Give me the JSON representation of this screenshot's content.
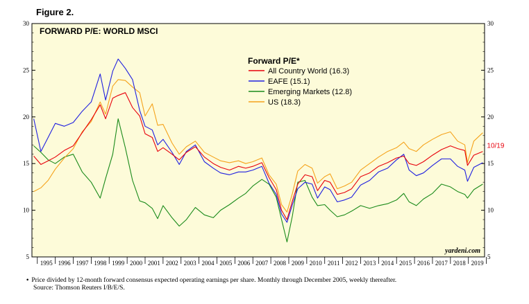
{
  "figure_label": "Figure 2.",
  "footnote": "Price divided by 12-month forward consensus expected operating earnings per share. Monthly through December 2005, weekly thereafter.",
  "source": "Source: Thomson Reuters I/B/E/S.",
  "chart_data": {
    "type": "line",
    "title": "FORWARD P/E: WORLD MSCI",
    "legend_title": "Forward P/E*",
    "legend_position": "top-center",
    "watermark": "yardeni.com",
    "end_label": "10/19",
    "ylim": [
      5,
      30
    ],
    "yticks": [
      5,
      10,
      15,
      20,
      25,
      30
    ],
    "xlim": [
      1994.7,
      2019.9
    ],
    "xtick_labels": [
      "1995",
      "1996",
      "1997",
      "1998",
      "1999",
      "2000",
      "2001",
      "2002",
      "2003",
      "2004",
      "2005",
      "2006",
      "2007",
      "2008",
      "2009",
      "2010",
      "2011",
      "2012",
      "2013",
      "2014",
      "2015",
      "2016",
      "2017",
      "2018",
      "2019"
    ],
    "background": "#fdfbd9",
    "series": [
      {
        "name": "All Country World (16.3)",
        "color": "#e8000b",
        "x": [
          1994.8,
          1995.2,
          1995.6,
          1996.0,
          1996.5,
          1997.0,
          1997.5,
          1998.0,
          1998.5,
          1998.8,
          1999.2,
          1999.5,
          1999.9,
          2000.3,
          2000.7,
          2001.0,
          2001.4,
          2001.7,
          2002.0,
          2002.5,
          2002.9,
          2003.3,
          2003.8,
          2004.3,
          2004.8,
          2005.2,
          2005.7,
          2006.2,
          2006.6,
          2007.0,
          2007.5,
          2007.9,
          2008.3,
          2008.6,
          2008.9,
          2009.2,
          2009.5,
          2009.9,
          2010.3,
          2010.6,
          2011.0,
          2011.3,
          2011.7,
          2012.1,
          2012.5,
          2013.0,
          2013.5,
          2014.0,
          2014.5,
          2015.0,
          2015.4,
          2015.7,
          2016.1,
          2016.5,
          2017.0,
          2017.5,
          2018.0,
          2018.4,
          2018.8,
          2018.95,
          2019.3,
          2019.8
        ],
        "y": [
          15.8,
          14.9,
          15.3,
          15.7,
          16.4,
          16.9,
          18.3,
          19.7,
          21.3,
          19.8,
          22.0,
          22.3,
          22.6,
          21.0,
          20.1,
          18.2,
          17.8,
          16.3,
          16.7,
          16.0,
          15.4,
          16.2,
          16.8,
          15.7,
          15.0,
          14.6,
          14.3,
          14.7,
          14.5,
          14.7,
          15.1,
          13.5,
          12.2,
          10.0,
          9.0,
          11.0,
          12.8,
          13.8,
          13.6,
          12.1,
          13.2,
          13.0,
          11.7,
          11.9,
          12.3,
          13.6,
          14.0,
          14.7,
          15.1,
          15.6,
          15.8,
          15.0,
          14.8,
          15.2,
          15.9,
          16.5,
          16.9,
          16.6,
          16.4,
          14.8,
          15.9,
          16.3
        ]
      },
      {
        "name": "EAFE (15.1)",
        "color": "#1f1fe0",
        "x": [
          1994.8,
          1995.2,
          1995.6,
          1996.0,
          1996.5,
          1997.0,
          1997.5,
          1998.0,
          1998.5,
          1998.8,
          1999.2,
          1999.5,
          1999.9,
          2000.3,
          2000.7,
          2001.0,
          2001.4,
          2001.7,
          2002.0,
          2002.5,
          2002.9,
          2003.3,
          2003.8,
          2004.3,
          2004.8,
          2005.2,
          2005.7,
          2006.2,
          2006.6,
          2007.0,
          2007.5,
          2007.9,
          2008.3,
          2008.6,
          2008.9,
          2009.2,
          2009.5,
          2009.9,
          2010.3,
          2010.6,
          2011.0,
          2011.3,
          2011.7,
          2012.1,
          2012.5,
          2013.0,
          2013.5,
          2014.0,
          2014.5,
          2015.0,
          2015.4,
          2015.7,
          2016.1,
          2016.5,
          2017.0,
          2017.5,
          2018.0,
          2018.4,
          2018.8,
          2018.95,
          2019.3,
          2019.8
        ],
        "y": [
          19.8,
          16.3,
          17.8,
          19.3,
          19.0,
          19.4,
          20.6,
          21.6,
          24.6,
          21.8,
          24.9,
          26.2,
          25.2,
          24.0,
          20.7,
          19.0,
          18.6,
          17.0,
          17.6,
          16.2,
          14.9,
          16.3,
          17.0,
          15.2,
          14.5,
          14.0,
          13.8,
          14.1,
          14.1,
          14.3,
          14.7,
          12.9,
          11.7,
          9.6,
          8.7,
          10.6,
          12.3,
          13.0,
          12.8,
          11.3,
          12.5,
          12.2,
          10.9,
          11.1,
          11.4,
          12.7,
          13.2,
          14.1,
          14.5,
          15.4,
          16.0,
          14.3,
          13.7,
          14.0,
          14.8,
          15.5,
          15.5,
          14.7,
          14.3,
          13.1,
          14.6,
          15.1
        ]
      },
      {
        "name": "Emerging Markets (12.8)",
        "color": "#1a8a1a",
        "x": [
          1994.8,
          1995.2,
          1995.6,
          1996.0,
          1996.5,
          1997.0,
          1997.5,
          1998.0,
          1998.5,
          1998.8,
          1999.2,
          1999.5,
          1999.9,
          2000.3,
          2000.7,
          2001.0,
          2001.4,
          2001.7,
          2002.0,
          2002.5,
          2002.9,
          2003.3,
          2003.8,
          2004.3,
          2004.8,
          2005.2,
          2005.7,
          2006.2,
          2006.6,
          2007.0,
          2007.5,
          2007.9,
          2008.3,
          2008.6,
          2008.9,
          2009.2,
          2009.5,
          2009.9,
          2010.3,
          2010.6,
          2011.0,
          2011.3,
          2011.7,
          2012.1,
          2012.5,
          2013.0,
          2013.5,
          2014.0,
          2014.5,
          2015.0,
          2015.4,
          2015.7,
          2016.1,
          2016.5,
          2017.0,
          2017.5,
          2018.0,
          2018.4,
          2018.8,
          2018.95,
          2019.3,
          2019.8
        ],
        "y": [
          16.9,
          16.2,
          15.4,
          15.0,
          15.7,
          16.0,
          14.1,
          13.0,
          11.3,
          13.4,
          16.0,
          19.8,
          16.7,
          13.2,
          11.0,
          10.8,
          10.2,
          9.1,
          10.5,
          9.2,
          8.3,
          9.0,
          10.3,
          9.5,
          9.2,
          10.0,
          10.6,
          11.3,
          11.8,
          12.6,
          13.3,
          12.8,
          11.4,
          9.0,
          6.6,
          9.4,
          13.0,
          13.2,
          11.4,
          10.5,
          10.6,
          10.0,
          9.3,
          9.5,
          9.9,
          10.5,
          10.2,
          10.5,
          10.7,
          11.1,
          11.8,
          10.9,
          10.5,
          11.2,
          11.8,
          12.8,
          12.5,
          12.0,
          11.7,
          11.3,
          12.2,
          12.8
        ]
      },
      {
        "name": "US (18.3)",
        "color": "#f5a21a",
        "x": [
          1994.8,
          1995.2,
          1995.6,
          1996.0,
          1996.5,
          1997.0,
          1997.5,
          1998.0,
          1998.5,
          1998.8,
          1999.2,
          1999.5,
          1999.9,
          2000.3,
          2000.7,
          2001.0,
          2001.4,
          2001.7,
          2002.0,
          2002.5,
          2002.9,
          2003.3,
          2003.8,
          2004.3,
          2004.8,
          2005.2,
          2005.7,
          2006.2,
          2006.6,
          2007.0,
          2007.5,
          2007.9,
          2008.3,
          2008.6,
          2008.9,
          2009.2,
          2009.5,
          2009.9,
          2010.3,
          2010.6,
          2011.0,
          2011.3,
          2011.7,
          2012.1,
          2012.5,
          2013.0,
          2013.5,
          2014.0,
          2014.5,
          2015.0,
          2015.4,
          2015.7,
          2016.1,
          2016.5,
          2017.0,
          2017.5,
          2018.0,
          2018.4,
          2018.8,
          2018.95,
          2019.3,
          2019.8
        ],
        "y": [
          12.0,
          12.4,
          13.2,
          14.4,
          15.6,
          16.6,
          18.4,
          19.5,
          21.6,
          20.3,
          23.3,
          24.0,
          23.9,
          23.2,
          22.6,
          20.1,
          21.4,
          19.1,
          19.2,
          17.2,
          16.0,
          16.8,
          17.4,
          16.2,
          15.7,
          15.3,
          15.1,
          15.3,
          15.0,
          15.2,
          15.6,
          13.8,
          12.8,
          10.6,
          9.8,
          11.8,
          14.2,
          14.9,
          14.5,
          12.9,
          13.6,
          13.9,
          12.3,
          12.6,
          13.0,
          14.3,
          15.0,
          15.7,
          16.3,
          16.7,
          17.3,
          16.6,
          16.3,
          17.0,
          17.6,
          18.1,
          18.4,
          17.4,
          17.0,
          15.1,
          17.4,
          18.3
        ]
      }
    ]
  }
}
